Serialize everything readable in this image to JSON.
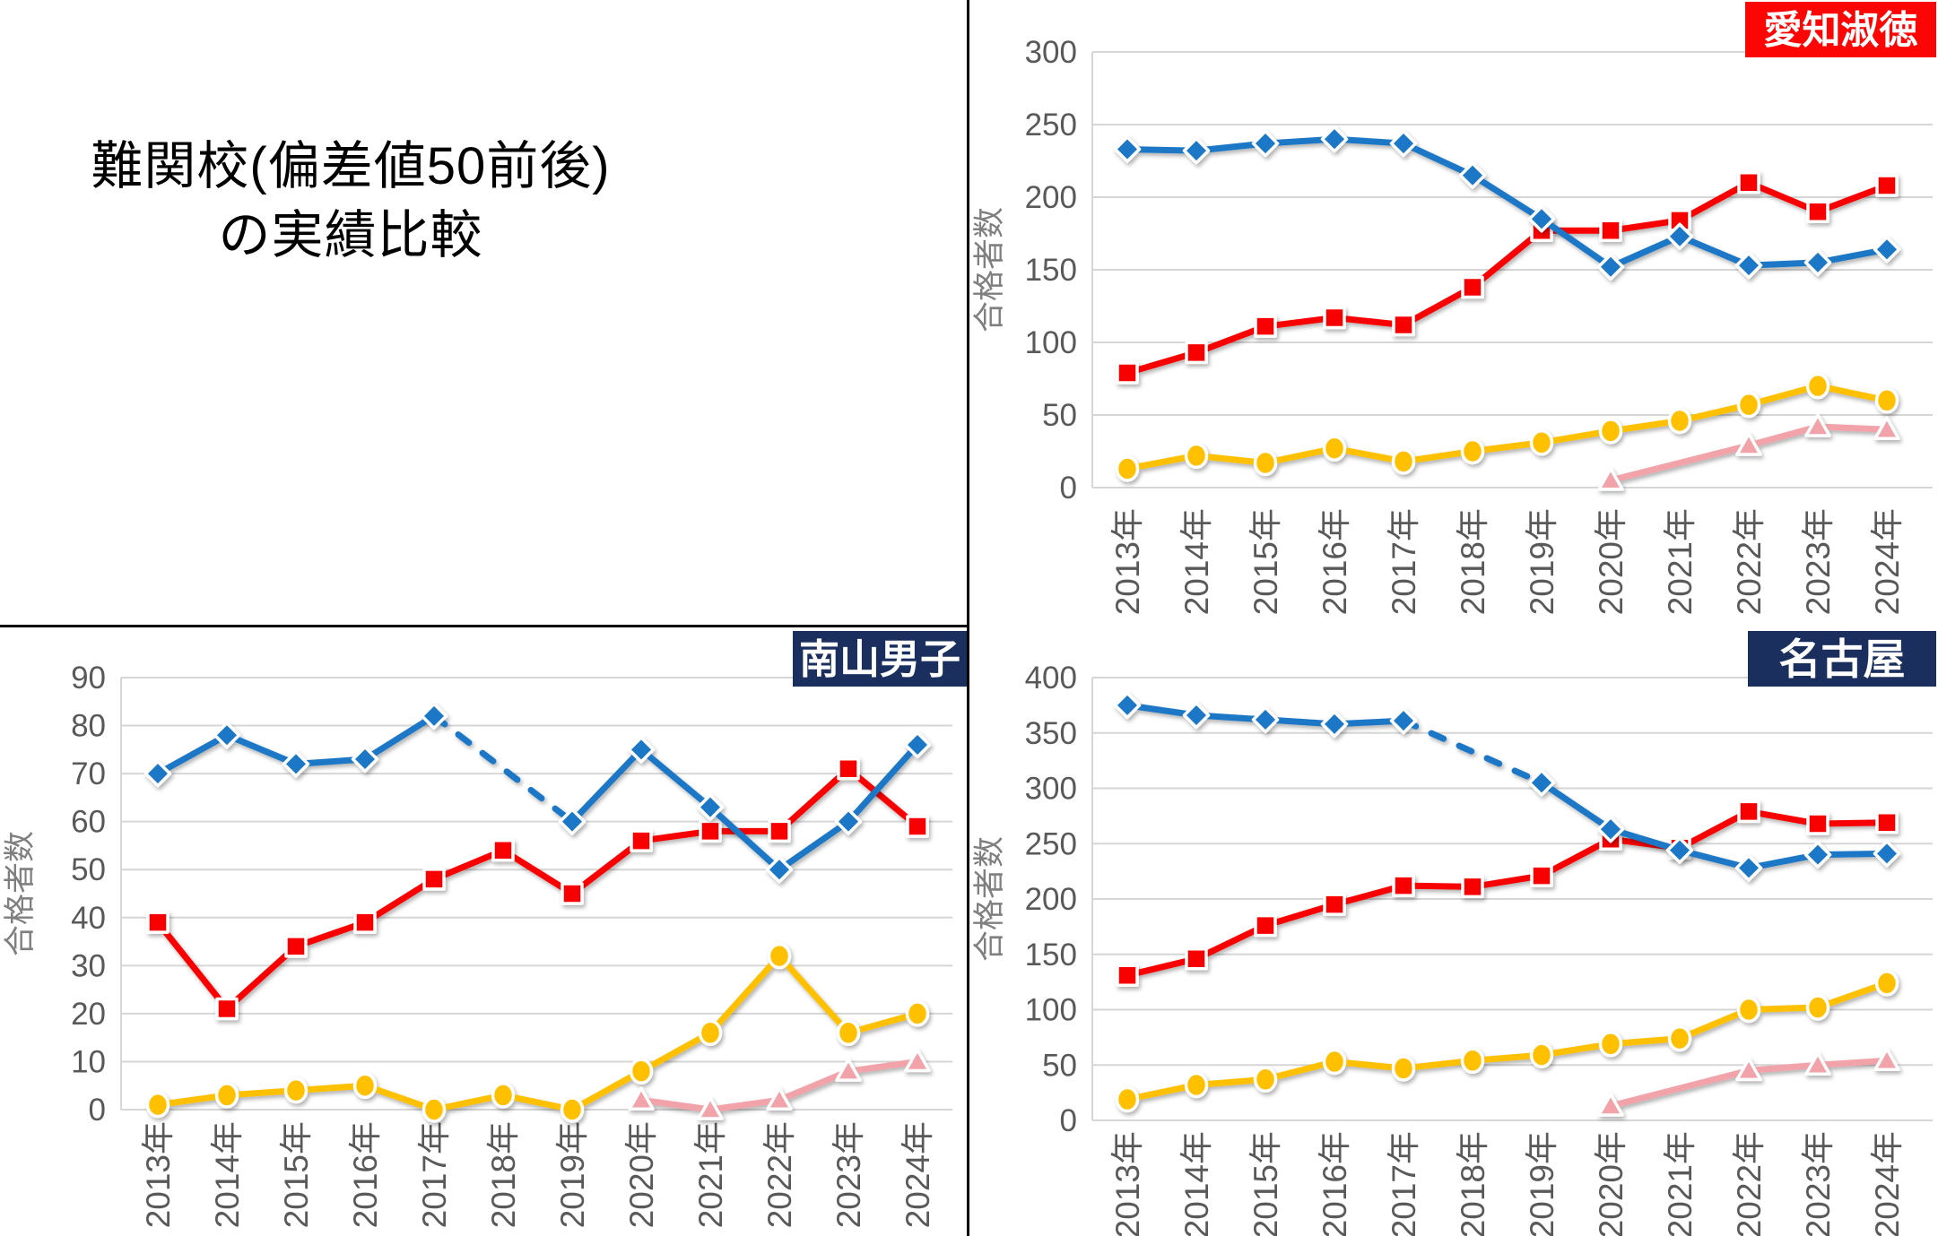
{
  "page": {
    "title_line1": "難関校(偏差値50前後)",
    "title_line2": "の実績比較"
  },
  "shared": {
    "y_axis_title": "合格者数",
    "years": [
      "2013年",
      "2014年",
      "2015年",
      "2016年",
      "2017年",
      "2018年",
      "2019年",
      "2020年",
      "2021年",
      "2022年",
      "2023年",
      "2024年"
    ],
    "colors": {
      "blue": "#1B78C6",
      "red": "#F90606",
      "yellow": "#FFC000",
      "pink": "#F2A2A9",
      "grid": "#D6D6D6",
      "tick_text": "#595959",
      "axis_title_text": "#7F7F7F",
      "badge_red": "#FB0505",
      "badge_navy": "#1B2F5E",
      "badge_text": "#FFFFFF"
    }
  },
  "chart_data": [
    {
      "id": "aichi",
      "type": "line",
      "title": "愛知淑徳",
      "badge_color": "#FB0505",
      "ylabel": "合格者数",
      "xlabel": "",
      "ylim": [
        0,
        300
      ],
      "ytick_step": 50,
      "grid": true,
      "legend": "none",
      "categories": [
        "2013年",
        "2014年",
        "2015年",
        "2016年",
        "2017年",
        "2018年",
        "2019年",
        "2020年",
        "2021年",
        "2022年",
        "2023年",
        "2024年"
      ],
      "series": [
        {
          "name": "blue",
          "marker": "diamond",
          "color": "#1B78C6",
          "gap_style": "dashed",
          "values": [
            233,
            232,
            237,
            240,
            237,
            215,
            185,
            152,
            173,
            153,
            155,
            164
          ]
        },
        {
          "name": "red",
          "marker": "square",
          "color": "#F90606",
          "gap_style": "solid",
          "values": [
            79,
            93,
            111,
            117,
            112,
            138,
            177,
            177,
            184,
            210,
            190,
            208
          ]
        },
        {
          "name": "yellow",
          "marker": "circle",
          "color": "#FFC000",
          "gap_style": "solid",
          "values": [
            13,
            22,
            17,
            27,
            18,
            25,
            31,
            39,
            46,
            57,
            70,
            60
          ]
        },
        {
          "name": "pink",
          "marker": "triangle",
          "color": "#F2A2A9",
          "gap_style": "solid",
          "values": [
            null,
            null,
            null,
            null,
            null,
            null,
            null,
            5,
            null,
            29,
            42,
            40
          ]
        }
      ]
    },
    {
      "id": "nanzan",
      "type": "line",
      "title": "南山男子",
      "badge_color": "#1B2F5E",
      "ylabel": "合格者数",
      "xlabel": "",
      "ylim": [
        0,
        90
      ],
      "ytick_step": 10,
      "grid": true,
      "legend": "none",
      "categories": [
        "2013年",
        "2014年",
        "2015年",
        "2016年",
        "2017年",
        "2018年",
        "2019年",
        "2020年",
        "2021年",
        "2022年",
        "2023年",
        "2024年"
      ],
      "series": [
        {
          "name": "blue",
          "marker": "diamond",
          "color": "#1B78C6",
          "gap_style": "dashed",
          "values": [
            70,
            78,
            72,
            73,
            82,
            null,
            60,
            75,
            63,
            50,
            60,
            76
          ]
        },
        {
          "name": "red",
          "marker": "square",
          "color": "#F90606",
          "gap_style": "solid",
          "values": [
            39,
            21,
            34,
            39,
            48,
            54,
            45,
            56,
            58,
            58,
            71,
            59
          ]
        },
        {
          "name": "yellow",
          "marker": "circle",
          "color": "#FFC000",
          "gap_style": "solid",
          "values": [
            1,
            3,
            4,
            5,
            0,
            3,
            0,
            8,
            16,
            32,
            16,
            20
          ]
        },
        {
          "name": "pink",
          "marker": "triangle",
          "color": "#F2A2A9",
          "gap_style": "solid",
          "values": [
            null,
            null,
            null,
            null,
            null,
            null,
            null,
            2,
            0,
            2,
            8,
            10
          ]
        }
      ]
    },
    {
      "id": "nagoya",
      "type": "line",
      "title": "名古屋",
      "badge_color": "#1B2F5E",
      "ylabel": "合格者数",
      "xlabel": "",
      "ylim": [
        0,
        400
      ],
      "ytick_step": 50,
      "grid": true,
      "legend": "none",
      "categories": [
        "2013年",
        "2014年",
        "2015年",
        "2016年",
        "2017年",
        "2018年",
        "2019年",
        "2020年",
        "2021年",
        "2022年",
        "2023年",
        "2024年"
      ],
      "series": [
        {
          "name": "blue",
          "marker": "diamond",
          "color": "#1B78C6",
          "gap_style": "dashed",
          "values": [
            375,
            366,
            362,
            358,
            361,
            null,
            305,
            263,
            244,
            228,
            240,
            241
          ]
        },
        {
          "name": "red",
          "marker": "square",
          "color": "#F90606",
          "gap_style": "solid",
          "values": [
            131,
            146,
            176,
            195,
            212,
            211,
            221,
            254,
            246,
            279,
            268,
            269
          ]
        },
        {
          "name": "yellow",
          "marker": "circle",
          "color": "#FFC000",
          "gap_style": "solid",
          "values": [
            19,
            32,
            37,
            53,
            47,
            54,
            59,
            69,
            74,
            100,
            102,
            124
          ]
        },
        {
          "name": "pink",
          "marker": "triangle",
          "color": "#F2A2A9",
          "gap_style": "solid",
          "values": [
            null,
            null,
            null,
            null,
            null,
            null,
            null,
            13,
            null,
            45,
            50,
            54
          ]
        }
      ]
    }
  ]
}
